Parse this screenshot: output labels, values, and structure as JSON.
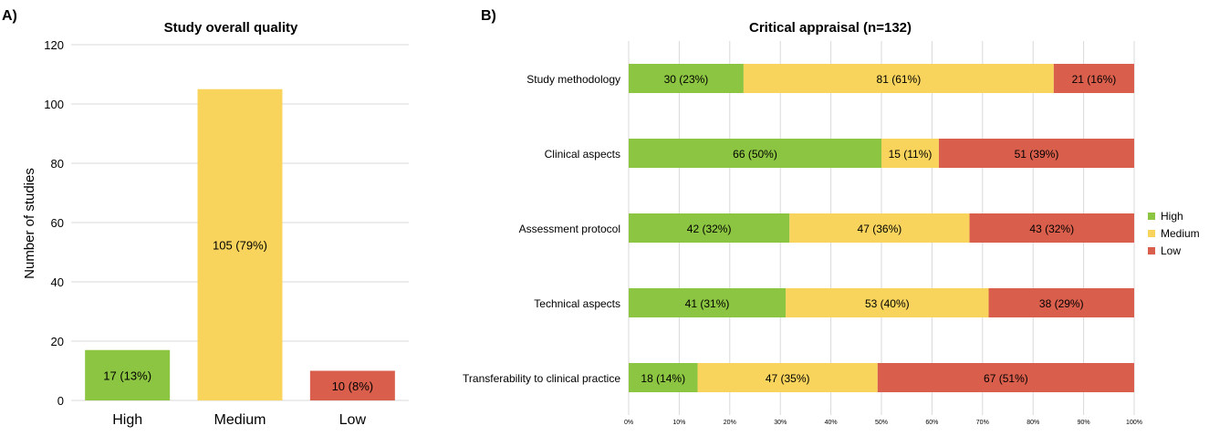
{
  "panel_labels": {
    "a": "A)",
    "b": "B)"
  },
  "colors": {
    "high": "#8cc541",
    "medium": "#f8d45c",
    "low": "#d95f4c",
    "grid": "#d9d9d9",
    "text": "#000000"
  },
  "chart_data": [
    {
      "type": "bar",
      "title": "Study overall quality",
      "xlabel": "",
      "ylabel": "Number of studies",
      "ylim": [
        0,
        120
      ],
      "yticks": [
        0,
        20,
        40,
        60,
        80,
        100,
        120
      ],
      "categories": [
        "High",
        "Medium",
        "Low"
      ],
      "values": [
        17,
        105,
        10
      ],
      "data_labels": [
        "17 (13%)",
        "105 (79%)",
        "10 (8%)"
      ],
      "bar_colors": [
        "#8cc541",
        "#f8d45c",
        "#d95f4c"
      ],
      "grid": true
    },
    {
      "type": "bar",
      "orientation": "horizontal",
      "stacked": "percent",
      "title": "Critical appraisal (n=132)",
      "categories": [
        "Study methodology",
        "Clinical aspects",
        "Assessment protocol",
        "Technical aspects",
        "Transferability to clinical practice"
      ],
      "xlim": [
        0,
        100
      ],
      "xticks": [
        "0%",
        "10%",
        "20%",
        "30%",
        "40%",
        "50%",
        "60%",
        "70%",
        "80%",
        "90%",
        "100%"
      ],
      "legend_position": "right",
      "grid": true,
      "series": [
        {
          "name": "High",
          "color": "#8cc541",
          "values": [
            30,
            66,
            42,
            41,
            18
          ],
          "labels": [
            "30 (23%)",
            "66 (50%)",
            "42 (32%)",
            "41 (31%)",
            "18 (14%)"
          ]
        },
        {
          "name": "Medium",
          "color": "#f8d45c",
          "values": [
            81,
            15,
            47,
            53,
            47
          ],
          "labels": [
            "81 (61%)",
            "15 (11%)",
            "47 (36%)",
            "53 (40%)",
            "47 (35%)"
          ]
        },
        {
          "name": "Low",
          "color": "#d95f4c",
          "values": [
            21,
            51,
            43,
            38,
            67
          ],
          "labels": [
            "21 (16%)",
            "51 (39%)",
            "43 (32%)",
            "38 (29%)",
            "67 (51%)"
          ]
        }
      ]
    }
  ]
}
